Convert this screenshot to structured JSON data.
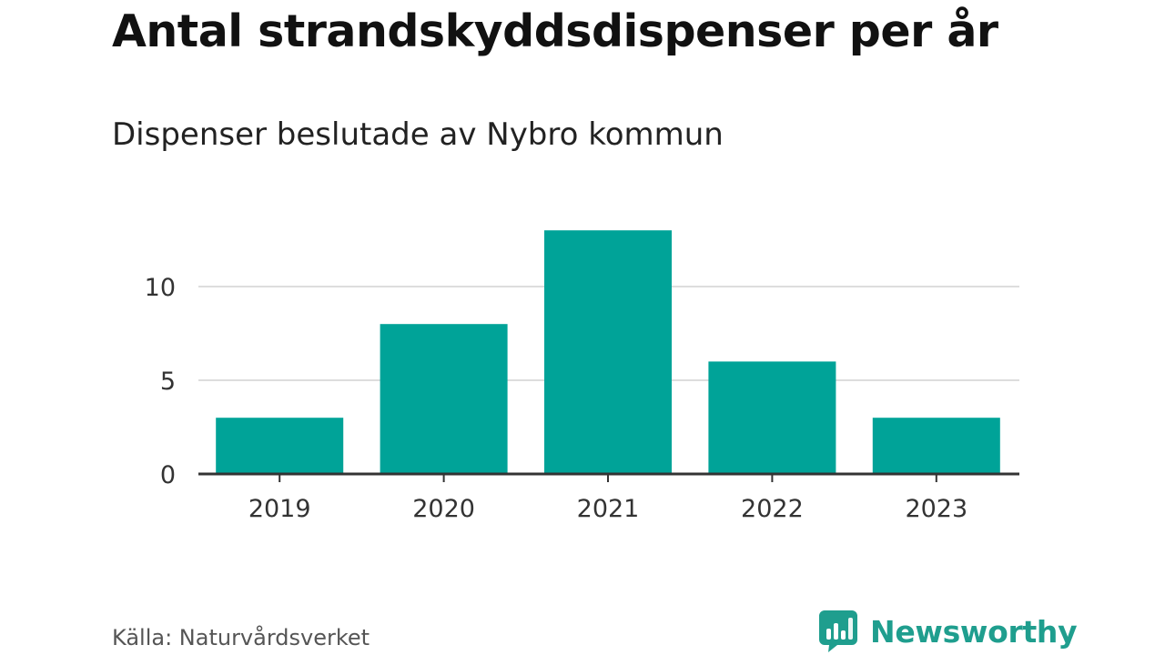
{
  "title": "Antal strandskyddsdispenser per år",
  "subtitle": "Dispenser beslutade av Nybro kommun",
  "source": "Källa: Naturvårdsverket",
  "brand": {
    "name": "Newsworthy",
    "icon": "newsworthy-logo-icon",
    "color": "#1f9e8e"
  },
  "colors": {
    "bar": "#00a398",
    "grid": "#dddddd",
    "axis": "#333333",
    "tick_text": "#333333"
  },
  "chart_data": {
    "type": "bar",
    "categories": [
      "2019",
      "2020",
      "2021",
      "2022",
      "2023"
    ],
    "values": [
      3,
      8,
      13,
      6,
      3
    ],
    "title": "Antal strandskyddsdispenser per år",
    "subtitle": "Dispenser beslutade av Nybro kommun",
    "xlabel": "",
    "ylabel": "",
    "ylim": [
      0,
      13
    ],
    "yticks": [
      0,
      5,
      10
    ],
    "grid": true,
    "legend": "none"
  }
}
